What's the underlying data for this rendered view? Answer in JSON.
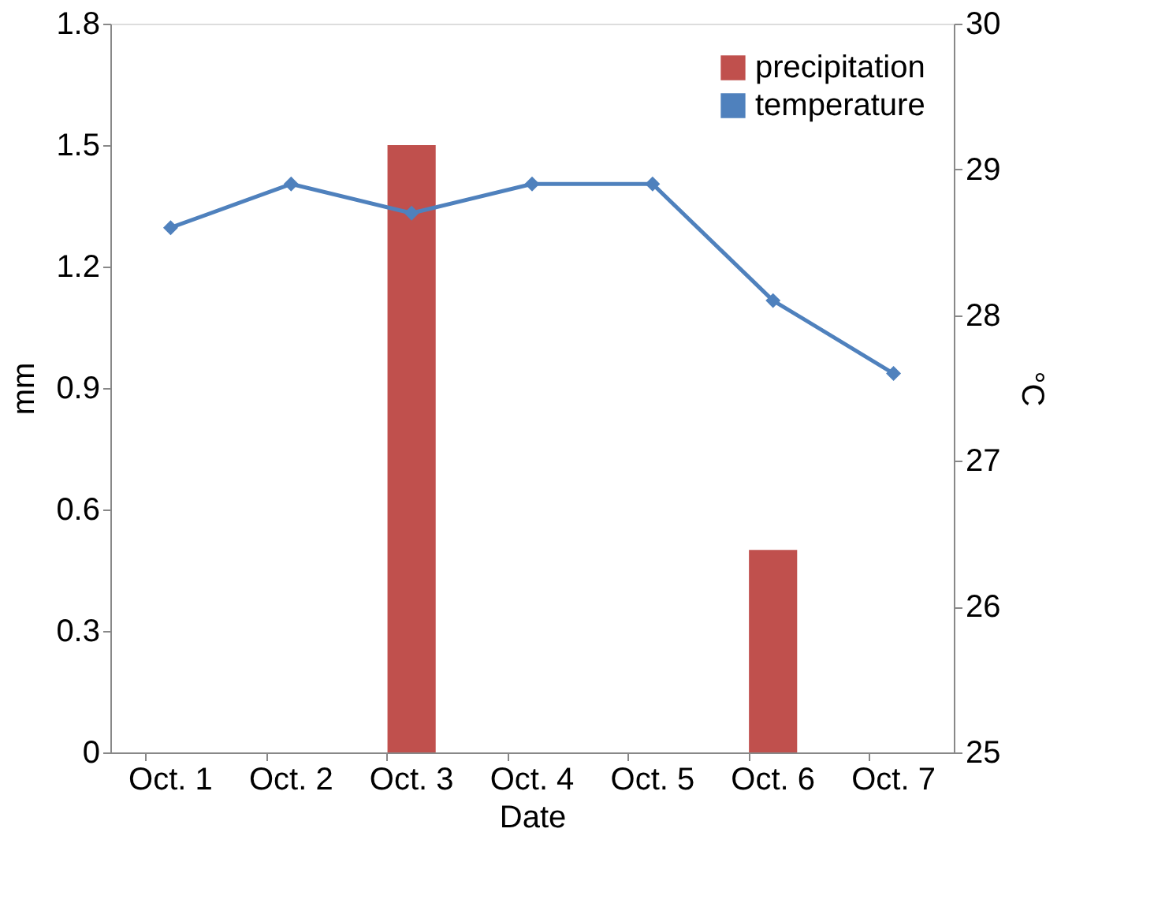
{
  "chart_data": {
    "type": "bar",
    "xlabel": "Date",
    "ylabel": "mm",
    "y2label": "°C",
    "categories": [
      "Oct. 1",
      "Oct. 2",
      "Oct. 3",
      "Oct. 4",
      "Oct. 5",
      "Oct. 6",
      "Oct. 7"
    ],
    "series": [
      {
        "name": "precipitation",
        "color": "#c0504d",
        "values": [
          0,
          0,
          1.5,
          0,
          0,
          0.5,
          0
        ]
      },
      {
        "name": "temperature",
        "type": "line",
        "axis": "y2",
        "color": "#4f81bd",
        "marker": "diamond",
        "values": [
          28.6,
          28.9,
          28.7,
          28.9,
          28.9,
          28.1,
          27.6
        ]
      }
    ],
    "ylim": [
      0,
      1.8
    ],
    "yticks": [
      0,
      0.3,
      0.6,
      0.9,
      1.2,
      1.5,
      1.8
    ],
    "y2lim": [
      25,
      30
    ],
    "y2ticks": [
      25,
      26,
      27,
      28,
      29,
      30
    ],
    "grid": false,
    "legend": "top right"
  }
}
